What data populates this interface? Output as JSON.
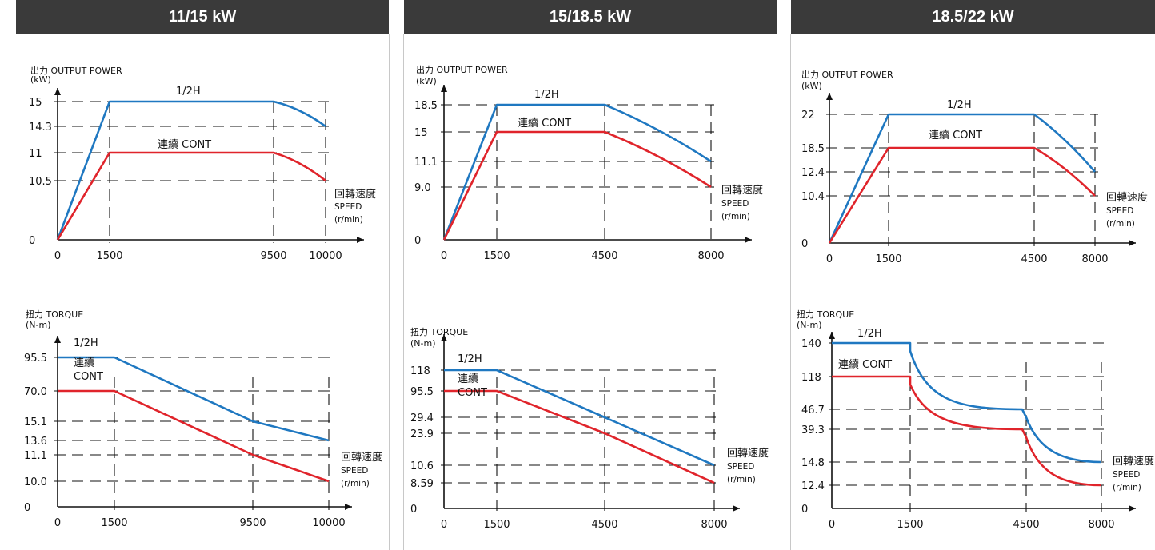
{
  "colors": {
    "half_hour": "#1f78c1",
    "continuous": "#e0242b",
    "header_bg": "#3a3a3a"
  },
  "panels": [
    {
      "title": "11/15 kW"
    },
    {
      "title": "15/18.5 kW"
    },
    {
      "title": "18.5/22 kW"
    }
  ],
  "labels": {
    "power_title": "出力 OUTPUT POWER",
    "power_unit": "(kW)",
    "torque_title": "扭力 TORQUE",
    "torque_unit": "(N-m)",
    "speed_label_cn": "回轉速度",
    "speed_label_en": "SPEED",
    "speed_unit": "(r/min)",
    "half_hour": "1/2H",
    "cont_cn": "連續",
    "cont_en": "CONT",
    "cont_inline": "連續 CONT"
  },
  "chart_data": [
    {
      "type": "line",
      "title": "11/15 kW",
      "ylabel": "出力 OUTPUT POWER (kW)",
      "xlabel": "回轉速度 SPEED (r/min)",
      "x_ticks": [
        "0",
        "1500",
        "9500",
        "10000"
      ],
      "y_ticks": [
        "0",
        "10.5",
        "11",
        "14.3",
        "15"
      ],
      "series": [
        {
          "name": "1/2H",
          "x": [
            0,
            1500,
            9500,
            10000
          ],
          "y": [
            0,
            15,
            15,
            14.3
          ]
        },
        {
          "name": "連續 CONT",
          "x": [
            0,
            1500,
            9500,
            10000
          ],
          "y": [
            0,
            11,
            11,
            10.5
          ]
        }
      ]
    },
    {
      "type": "line",
      "title": "11/15 kW",
      "ylabel": "扭力 TORQUE (N-m)",
      "xlabel": "回轉速度 SPEED (r/min)",
      "x_ticks": [
        "0",
        "1500",
        "9500",
        "10000"
      ],
      "y_ticks": [
        "0",
        "10.0",
        "11.1",
        "13.6",
        "15.1",
        "70.0",
        "95.5"
      ],
      "series": [
        {
          "name": "1/2H",
          "x": [
            0,
            1500,
            9500,
            10000
          ],
          "y": [
            95.5,
            95.5,
            15.1,
            13.6
          ]
        },
        {
          "name": "連續 CONT",
          "x": [
            0,
            1500,
            9500,
            10000
          ],
          "y": [
            70.0,
            70.0,
            11.1,
            10.0
          ]
        }
      ]
    },
    {
      "type": "line",
      "title": "15/18.5 kW",
      "ylabel": "出力 OUTPUT POWER (kW)",
      "xlabel": "回轉速度 SPEED (r/min)",
      "x_ticks": [
        "0",
        "1500",
        "4500",
        "8000"
      ],
      "y_ticks": [
        "0",
        "9.0",
        "11.1",
        "15",
        "18.5"
      ],
      "series": [
        {
          "name": "1/2H",
          "x": [
            0,
            1500,
            4500,
            8000
          ],
          "y": [
            0,
            18.5,
            18.5,
            11.1
          ]
        },
        {
          "name": "連續 CONT",
          "x": [
            0,
            1500,
            4500,
            8000
          ],
          "y": [
            0,
            15,
            15,
            9.0
          ]
        }
      ]
    },
    {
      "type": "line",
      "title": "15/18.5 kW",
      "ylabel": "扭力 TORQUE (N-m)",
      "xlabel": "回轉速度 SPEED (r/min)",
      "x_ticks": [
        "0",
        "1500",
        "4500",
        "8000"
      ],
      "y_ticks": [
        "0",
        "8.59",
        "10.6",
        "23.9",
        "29.4",
        "95.5",
        "118"
      ],
      "series": [
        {
          "name": "1/2H",
          "x": [
            0,
            1500,
            4500,
            8000
          ],
          "y": [
            118,
            118,
            29.4,
            10.6
          ]
        },
        {
          "name": "連續 CONT",
          "x": [
            0,
            1500,
            4500,
            8000
          ],
          "y": [
            95.5,
            95.5,
            23.9,
            8.59
          ]
        }
      ]
    },
    {
      "type": "line",
      "title": "18.5/22 kW",
      "ylabel": "出力 OUTPUT POWER (kW)",
      "xlabel": "回轉速度 SPEED (r/min)",
      "x_ticks": [
        "0",
        "1500",
        "4500",
        "8000"
      ],
      "y_ticks": [
        "0",
        "10.4",
        "12.4",
        "18.5",
        "22"
      ],
      "series": [
        {
          "name": "1/2H",
          "x": [
            0,
            1500,
            4500,
            8000
          ],
          "y": [
            0,
            22,
            22,
            12.4
          ]
        },
        {
          "name": "連續 CONT",
          "x": [
            0,
            1500,
            4500,
            8000
          ],
          "y": [
            0,
            18.5,
            18.5,
            10.4
          ]
        }
      ]
    },
    {
      "type": "line",
      "title": "18.5/22 kW",
      "ylabel": "扭力 TORQUE (N-m)",
      "xlabel": "回轉速度 SPEED (r/min)",
      "x_ticks": [
        "0",
        "1500",
        "4500",
        "8000"
      ],
      "y_ticks": [
        "0",
        "12.4",
        "14.8",
        "39.3",
        "46.7",
        "118",
        "140"
      ],
      "series": [
        {
          "name": "1/2H",
          "x": [
            0,
            1500,
            4500,
            8000
          ],
          "y": [
            140,
            140,
            46.7,
            14.8
          ]
        },
        {
          "name": "連續 CONT",
          "x": [
            0,
            1500,
            4500,
            8000
          ],
          "y": [
            118,
            118,
            39.3,
            12.4
          ]
        }
      ]
    }
  ]
}
